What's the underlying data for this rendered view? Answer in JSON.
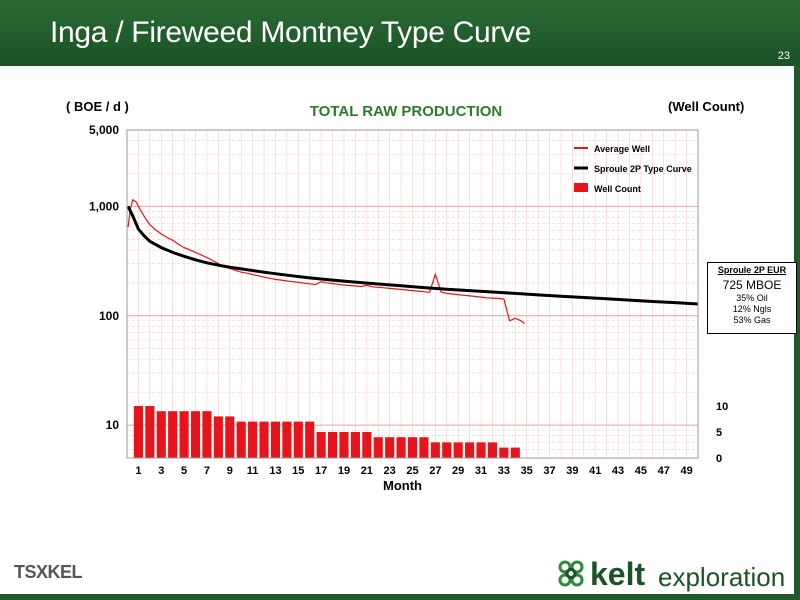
{
  "slide": {
    "title": "Inga / Fireweed Montney Type Curve",
    "page_number": "23",
    "tsx_label": "TSX",
    "tsx_ticker": "KEL",
    "company_word": "kelt",
    "company_sub": "exploration"
  },
  "eur_box": {
    "heading": "Sproule 2P EUR",
    "value": "725 MBOE",
    "oil": "35% Oil",
    "ngls": "12% Ngls",
    "gas": "53% Gas"
  },
  "colors": {
    "header_green": "#1f5a2a",
    "title_green": "#2d7a2d",
    "average_well": "#e8141c",
    "type_curve": "#000000",
    "well_count": "#e8141c",
    "grid_major": "#e9a0a0",
    "grid_minor": "#f4caca"
  },
  "chart_data": {
    "type": "line",
    "title": "TOTAL RAW PRODUCTION",
    "ylabel": "( BOE / d )",
    "y2label": "(Well Count)",
    "xlabel": "Month",
    "xlim": [
      0,
      50
    ],
    "ylim": [
      5,
      5000
    ],
    "yscale": "log",
    "y2lim": [
      0,
      10
    ],
    "x_ticks": [
      1,
      3,
      5,
      7,
      9,
      11,
      13,
      15,
      17,
      19,
      21,
      23,
      25,
      27,
      29,
      31,
      33,
      35,
      37,
      39,
      41,
      43,
      45,
      47,
      49
    ],
    "y_ticks": [
      {
        "value": 5000,
        "label": "5,000"
      },
      {
        "value": 1000,
        "label": "1,000"
      },
      {
        "value": 100,
        "label": "100"
      },
      {
        "value": 10,
        "label": "10"
      }
    ],
    "y2_ticks": [
      10,
      5,
      0
    ],
    "legend_position": "top-right",
    "grid": true,
    "series": [
      {
        "name": "Average Well",
        "kind": "line",
        "x": [
          0.1,
          0.3,
          0.5,
          0.8,
          1.0,
          1.3,
          1.6,
          2.0,
          2.5,
          3.0,
          3.5,
          4.0,
          4.5,
          5.0,
          5.5,
          6.0,
          6.5,
          7.0,
          7.5,
          8.0,
          8.5,
          9.0,
          9.5,
          10.0,
          10.5,
          11.0,
          11.5,
          12.0,
          12.5,
          13.0,
          13.5,
          14.0,
          14.5,
          15.0,
          15.5,
          16.0,
          16.5,
          17.0,
          17.5,
          18.0,
          18.5,
          19.0,
          19.5,
          20.0,
          20.5,
          21.0,
          21.5,
          22.0,
          22.5,
          23.0,
          23.5,
          24.0,
          24.5,
          25.0,
          25.5,
          26.0,
          26.5,
          27.0,
          27.5,
          28.0,
          28.5,
          29.0,
          29.5,
          30.0,
          30.5,
          31.0,
          31.5,
          32.0,
          32.5,
          33.0,
          33.5,
          34.0,
          34.5,
          34.8
        ],
        "y": [
          650,
          950,
          1150,
          1100,
          1000,
          880,
          780,
          680,
          610,
          560,
          520,
          490,
          450,
          420,
          400,
          380,
          360,
          340,
          320,
          300,
          280,
          270,
          260,
          250,
          245,
          238,
          232,
          225,
          220,
          215,
          212,
          208,
          205,
          202,
          199,
          196,
          193,
          205,
          200,
          197,
          194,
          191,
          189,
          187,
          185,
          190,
          184,
          182,
          180,
          178,
          176,
          174,
          172,
          170,
          168,
          166,
          164,
          240,
          165,
          160,
          158,
          156,
          154,
          152,
          150,
          148,
          146,
          145,
          144,
          142,
          90,
          95,
          90,
          85
        ],
        "color": "#e8141c"
      },
      {
        "name": "Sproule 2P Type Curve",
        "kind": "line",
        "x": [
          0.1,
          0.5,
          1,
          1.5,
          2,
          3,
          4,
          5,
          6,
          7,
          8,
          9,
          10,
          12,
          14,
          16,
          18,
          20,
          22,
          24,
          26,
          28,
          30,
          32,
          34,
          36,
          38,
          40,
          42,
          44,
          46,
          48,
          50
        ],
        "y": [
          1000,
          820,
          620,
          540,
          480,
          420,
          380,
          350,
          325,
          305,
          290,
          278,
          268,
          250,
          235,
          222,
          212,
          203,
          195,
          188,
          181,
          175,
          170,
          165,
          160,
          155,
          151,
          147,
          143,
          139,
          135,
          132,
          128
        ],
        "color": "#000000"
      },
      {
        "name": "Well Count",
        "kind": "bar",
        "axis": "y2",
        "x": [
          1,
          2,
          3,
          4,
          5,
          6,
          7,
          8,
          9,
          10,
          11,
          12,
          13,
          14,
          15,
          16,
          17,
          18,
          19,
          20,
          21,
          22,
          23,
          24,
          25,
          26,
          27,
          28,
          29,
          30,
          31,
          32,
          33,
          34
        ],
        "values": [
          10,
          10,
          9,
          9,
          9,
          9,
          9,
          8,
          8,
          7,
          7,
          7,
          7,
          7,
          7,
          7,
          5,
          5,
          5,
          5,
          5,
          4,
          4,
          4,
          4,
          4,
          3,
          3,
          3,
          3,
          3,
          3,
          2,
          2
        ],
        "color": "#e8141c"
      }
    ]
  }
}
